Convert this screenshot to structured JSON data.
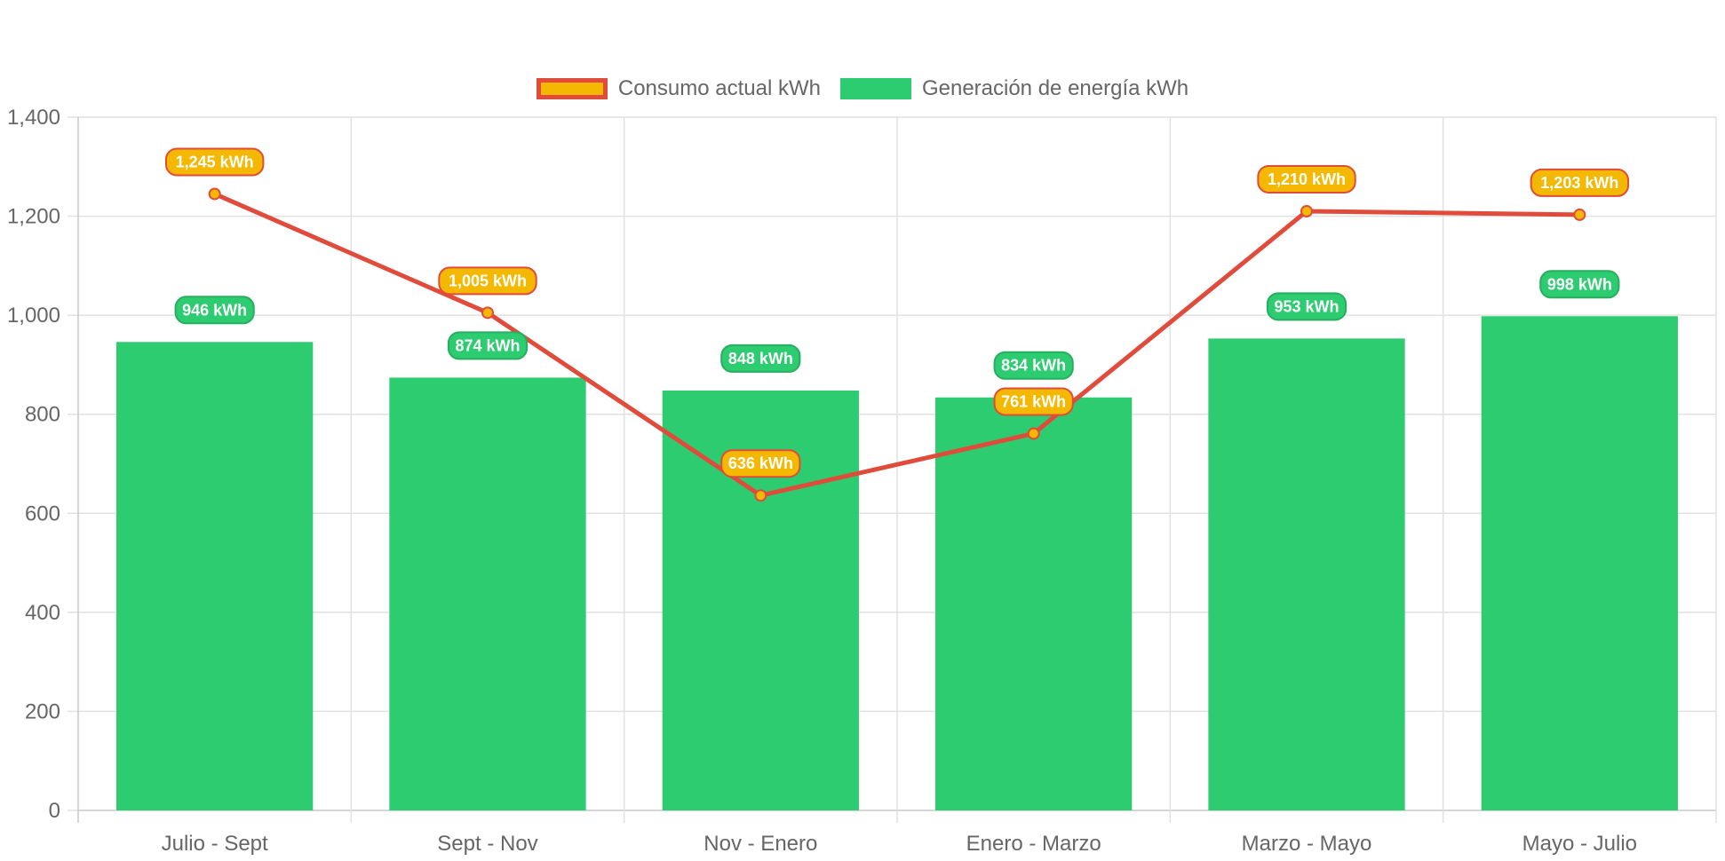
{
  "chart_data": {
    "type": "bar",
    "categories": [
      "Julio - Sept",
      "Sept - Nov",
      "Nov - Enero",
      "Enero - Marzo",
      "Marzo - Mayo",
      "Mayo - Julio"
    ],
    "series": [
      {
        "name": "Consumo actual kWh",
        "type": "line",
        "values": [
          1245,
          1005,
          636,
          761,
          1210,
          1203
        ],
        "labels": [
          "1,245 kWh",
          "1,005 kWh",
          "636 kWh",
          "761 kWh",
          "1,210 kWh",
          "1,203 kWh"
        ],
        "color": "#e14b3b",
        "fill": "#f5b800"
      },
      {
        "name": "Generación de energía kWh",
        "type": "bar",
        "values": [
          946,
          874,
          848,
          834,
          953,
          998
        ],
        "labels": [
          "946 kWh",
          "874 kWh",
          "848 kWh",
          "834 kWh",
          "953 kWh",
          "998 kWh"
        ],
        "color": "#2ecc71",
        "fill": "#2ecc71"
      }
    ],
    "ylim": [
      0,
      1400
    ],
    "yticks": [
      0,
      200,
      400,
      600,
      800,
      1000,
      1200,
      1400
    ],
    "ytick_labels": [
      "0",
      "200",
      "400",
      "600",
      "800",
      "1,000",
      "1,200",
      "1,400"
    ],
    "title": "",
    "xlabel": "",
    "ylabel": "",
    "grid": true,
    "legend": "top-center"
  }
}
